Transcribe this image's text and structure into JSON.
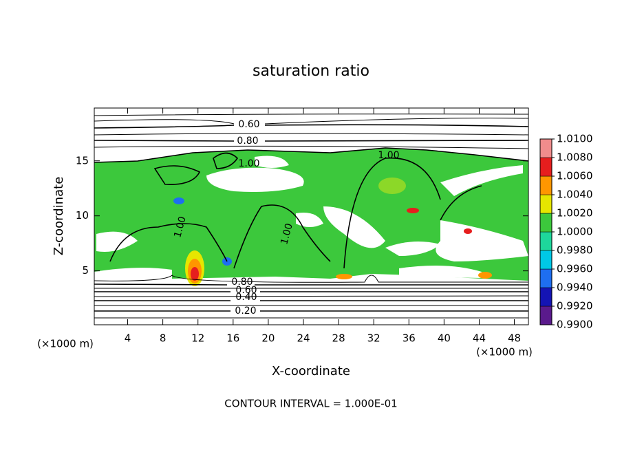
{
  "chart_data": {
    "type": "contour",
    "title": "saturation ratio",
    "x_label": "X-coordinate",
    "y_label": "Z-coordinate",
    "x_unit_label": "(×1000 m)",
    "y_unit_label": "(×1000 m)",
    "xlim": [
      0.2,
      49.6
    ],
    "xticks": [
      4,
      8,
      12,
      16,
      20,
      24,
      28,
      32,
      36,
      40,
      44,
      48
    ],
    "ylim": [
      0.1,
      19.8
    ],
    "yticks": [
      5,
      10,
      15
    ],
    "contour_labels": [
      "0.60",
      "0.80",
      "1.00",
      "1.00",
      "1.00",
      "1.00",
      "0.80",
      "0.60",
      "0.40",
      "0.20"
    ],
    "colorbar": {
      "lim": [
        0.99,
        1.01
      ],
      "ticks": [
        {
          "value": 0.99,
          "label": "0.9900"
        },
        {
          "value": 0.992,
          "label": "0.9920"
        },
        {
          "value": 0.994,
          "label": "0.9940"
        },
        {
          "value": 0.996,
          "label": "0.9960"
        },
        {
          "value": 0.998,
          "label": "0.9980"
        },
        {
          "value": 1.0,
          "label": "1.0000"
        },
        {
          "value": 1.002,
          "label": "1.0020"
        },
        {
          "value": 1.004,
          "label": "1.0040"
        },
        {
          "value": 1.006,
          "label": "1.0060"
        },
        {
          "value": 1.008,
          "label": "1.0080"
        },
        {
          "value": 1.01,
          "label": "1.0100"
        }
      ],
      "colors": [
        "#5a1a8c",
        "#1414b4",
        "#1e6ef0",
        "#00c8e6",
        "#1ed79b",
        "#3cc83c",
        "#e6e600",
        "#ff9600",
        "#e61e1e",
        "#f08c8c"
      ]
    },
    "note": "CONTOUR INTERVAL = 1.000E-01"
  }
}
